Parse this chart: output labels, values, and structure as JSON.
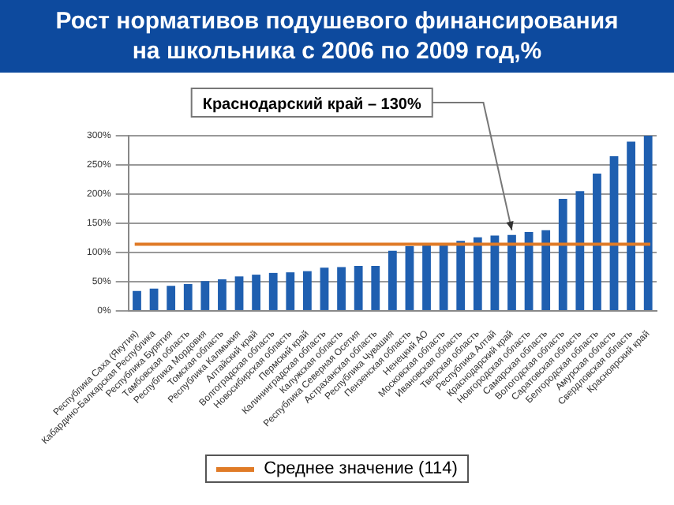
{
  "chart_data": {
    "type": "bar",
    "title": "Рост нормативов подушевого финансирования  на школьника  с 2006 по 2009 год,%",
    "categories": [
      "Республика Саха (Якутия)",
      "Кабардино-Балкарская Республика",
      "Республика Бурятия",
      "Тамбовская область",
      "Республика Мордовия",
      "Томская область",
      "Республика Калмыкия",
      "Алтайский край",
      "Волгоградская область",
      "Новосибирская область",
      "Пермский край",
      "Калининградская область",
      "Калужская область",
      "Республика Северная Осетия",
      "Астраханская область",
      "Республика Чувашия",
      "Пензенская область",
      "Ненецкий АО",
      "Московская область",
      "Ивановская область",
      "Тверская область",
      "Республика Алтай",
      "Краснодарский край",
      "Новгородская область",
      "Самарская область",
      "Вологодская область",
      "Саратовская область",
      "Белгородская область",
      "Амурская область",
      "Свердловская область",
      "Красноярский край"
    ],
    "values": [
      34,
      38,
      43,
      46,
      51,
      54,
      59,
      62,
      65,
      66,
      68,
      74,
      75,
      77,
      77,
      103,
      111,
      114,
      114,
      120,
      126,
      129,
      130,
      135,
      138,
      192,
      205,
      235,
      265,
      290,
      300
    ],
    "color": "#1f5fb0",
    "ylim": [
      0,
      300
    ],
    "yticks": [
      {
        "value": 0,
        "label": "0%"
      },
      {
        "value": 50,
        "label": "50%"
      },
      {
        "value": 100,
        "label": "100%"
      },
      {
        "value": 150,
        "label": "150%"
      },
      {
        "value": 200,
        "label": "200%"
      },
      {
        "value": 250,
        "label": "250%"
      },
      {
        "value": 300,
        "label": "300%"
      }
    ],
    "grid": "y",
    "ref_lines": [
      {
        "axis": "y",
        "value": 114,
        "label": "Среднее значение (114)",
        "color": "#e07b27"
      }
    ],
    "legend": "bottom",
    "annotations": [
      {
        "text": "Краснодарский край – 130%",
        "x": "Краснодарский край",
        "y": 130
      }
    ]
  }
}
